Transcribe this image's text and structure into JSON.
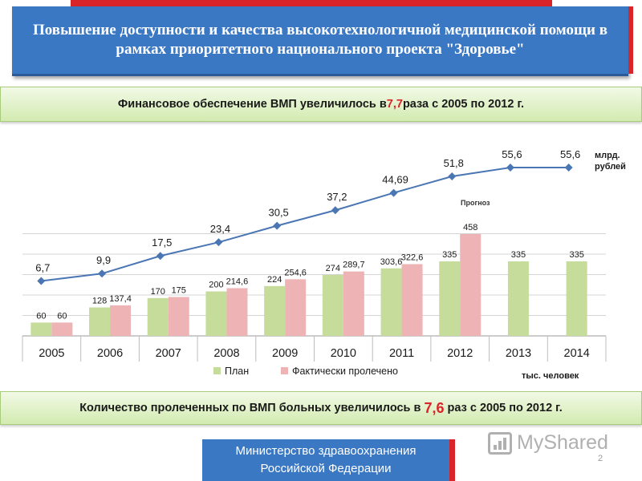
{
  "slide": {
    "title": "Повышение доступности и качества высокотехнологичной медицинской помощи в рамках приоритетного национального проекта \"Здоровье\"",
    "banner_funding": {
      "before": "Финансовое обеспечение ВМП увеличилось в ",
      "highlight": "7,7",
      "after": " раза с 2005 по 2012 г."
    },
    "banner_patients": {
      "before": "Количество пролеченных по ВМП больных увеличилось в ",
      "highlight": "7,6",
      "after": " раз с 2005 по 2012 г."
    },
    "unit_funding_line1": "млрд.",
    "unit_funding_line2": "рублей",
    "unit_patients": "тыс.  человек",
    "forecast_label": "Прогноз",
    "ministry_line1": "Министерство здравоохранения",
    "ministry_line2": "Российской Федерации",
    "watermark": "MyShared",
    "page_number": "2",
    "colors": {
      "title_bg": "#3a78c4",
      "accent_red": "#d9242a",
      "plan": "#c5dc9b",
      "actual": "#eeb4b5",
      "line": "#4a76b4"
    }
  },
  "chart_data": {
    "type": "bar+line",
    "categories": [
      "2005",
      "2006",
      "2007",
      "2008",
      "2009",
      "2010",
      "2011",
      "2012",
      "2013",
      "2014"
    ],
    "series": [
      {
        "name": "План",
        "type": "bar",
        "unit": "тыс. человек",
        "values": [
          60,
          128,
          170,
          200,
          224,
          274,
          303.6,
          335,
          335,
          335
        ],
        "labels": [
          "60",
          "128",
          "170",
          "200",
          "224",
          "274",
          "303,6",
          "335",
          "335",
          "335"
        ]
      },
      {
        "name": "Фактически пролечено",
        "type": "bar",
        "unit": "тыс. человек",
        "values": [
          60,
          137.4,
          175,
          214.6,
          254.6,
          289.7,
          322.6,
          458,
          null,
          null
        ],
        "labels": [
          "60",
          "137,4",
          "175",
          "214,6",
          "254,6",
          "289,7",
          "322,6",
          "458",
          "",
          ""
        ]
      },
      {
        "name": "Финансовое обеспечение",
        "type": "line",
        "unit": "млрд. рублей",
        "values": [
          6.7,
          9.9,
          17.5,
          23.4,
          30.5,
          37.2,
          44.69,
          51.8,
          55.6,
          55.6
        ],
        "labels": [
          "6,7",
          "9,9",
          "17,5",
          "23,4",
          "30,5",
          "37,2",
          "44,69",
          "51,8",
          "55,6",
          "55,6"
        ]
      }
    ],
    "bar_ylim": [
      0,
      500
    ],
    "line_ylim": [
      0,
      65
    ],
    "legend": [
      "План",
      "Фактически пролечено"
    ],
    "legend_position": "bottom",
    "grid": true
  }
}
